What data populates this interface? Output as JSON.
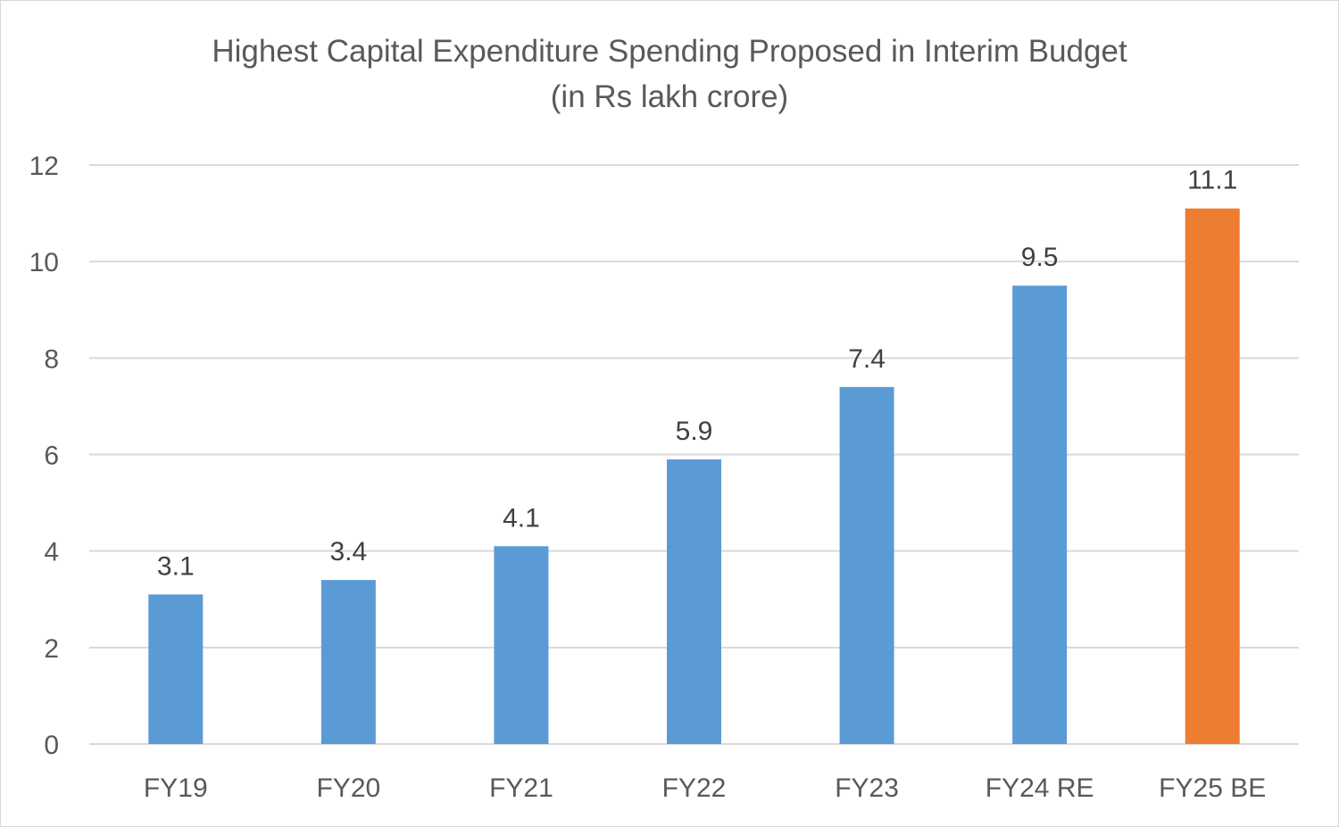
{
  "chart_data": {
    "type": "bar",
    "title": "Highest Capital Expenditure Spending Proposed in Interim Budget",
    "subtitle": "(in Rs lakh crore)",
    "categories": [
      "FY19",
      "FY20",
      "FY21",
      "FY22",
      "FY23",
      "FY24 RE",
      "FY25 BE"
    ],
    "values": [
      3.1,
      3.4,
      4.1,
      5.9,
      7.4,
      9.5,
      11.1
    ],
    "data_labels": [
      "3.1",
      "3.4",
      "4.1",
      "5.9",
      "7.4",
      "9.5",
      "11.1"
    ],
    "bar_colors": [
      "#5b9bd5",
      "#5b9bd5",
      "#5b9bd5",
      "#5b9bd5",
      "#5b9bd5",
      "#5b9bd5",
      "#ed7d31"
    ],
    "ylim": [
      0,
      12
    ],
    "yticks": [
      "0",
      "2",
      "4",
      "6",
      "8",
      "10",
      "12"
    ],
    "grid": true,
    "legend": "none",
    "xlabel": "",
    "ylabel": ""
  }
}
